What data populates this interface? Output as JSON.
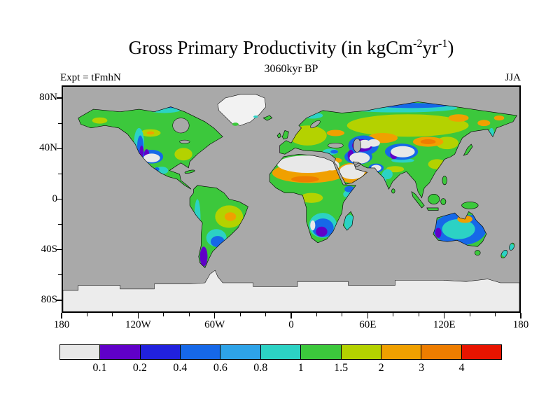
{
  "chart_data": {
    "type": "heatmap",
    "title": "Gross Primary Productivity (in kgCm⁻²yr⁻¹)",
    "title_parts": {
      "prefix": "Gross Primary Productivity (in kgCm",
      "sup1": "-2",
      "mid": "yr",
      "sup2": "-1",
      "suffix": ")"
    },
    "subtitle": "3060kyr BP",
    "experiment_label": "Expt = tFmhN",
    "season_label": "JJA",
    "projection": "equirectangular world map",
    "xlim": [
      -180,
      180
    ],
    "ylim": [
      -90,
      90
    ],
    "lon_ticks": [
      {
        "label": "180",
        "deg_from_left": 0
      },
      {
        "label": "120W",
        "deg_from_left": 60
      },
      {
        "label": "60W",
        "deg_from_left": 120
      },
      {
        "label": "0",
        "deg_from_left": 180
      },
      {
        "label": "60E",
        "deg_from_left": 240
      },
      {
        "label": "120E",
        "deg_from_left": 300
      },
      {
        "label": "180",
        "deg_from_left": 360
      }
    ],
    "lat_ticks": [
      {
        "label": "80N",
        "deg_from_top": 10
      },
      {
        "label": "40N",
        "deg_from_top": 50
      },
      {
        "label": "0",
        "deg_from_top": 90
      },
      {
        "label": "40S",
        "deg_from_top": 130
      },
      {
        "label": "80S",
        "deg_from_top": 170
      }
    ],
    "minor_tick_step_deg": 20,
    "colorbar": {
      "units": "kgC m-2 yr-1",
      "boundary_labels": [
        "0.1",
        "0.2",
        "0.4",
        "0.6",
        "0.8",
        "1",
        "1.5",
        "2",
        "3",
        "4"
      ],
      "segment_colors": [
        "#e8e8e8",
        "#6000c8",
        "#2121dd",
        "#1668e8",
        "#2ea3e8",
        "#2cd2c4",
        "#3cc83c",
        "#b4d200",
        "#f0a000",
        "#ee7d00",
        "#e81400"
      ]
    },
    "ocean_color": "#a9a9a9",
    "ice_color": "#ececec",
    "regions": [
      {
        "region": "Sahara, Arabian Peninsula, central Asian deserts, Tibet/Tarim, SW North America, Atacama, Namib",
        "approx_value": "< 0.1 (white)"
      },
      {
        "region": "Sahel belt ringing the Sahara",
        "approx_value": "2 - 4"
      },
      {
        "region": "Central/east Brazil, Kazakh steppe, Gobi, NE Siberia patches, S Russia, N Australia patch",
        "approx_value": "2 - 3"
      },
      {
        "region": "Tropical Africa, Amazon, SE Asia, India, eastern North America, Europe, boreal Canada and Siberia",
        "approx_value": "1 - 2"
      },
      {
        "region": "Rockies, Andes, Himalayan rim, southern Africa, Australian interior, Patagonia",
        "approx_value": "0.1 - 0.8 (purple-blue-cyan)"
      },
      {
        "region": "Greenland and Antarctica",
        "approx_value": "ice sheet (no data)"
      }
    ]
  }
}
